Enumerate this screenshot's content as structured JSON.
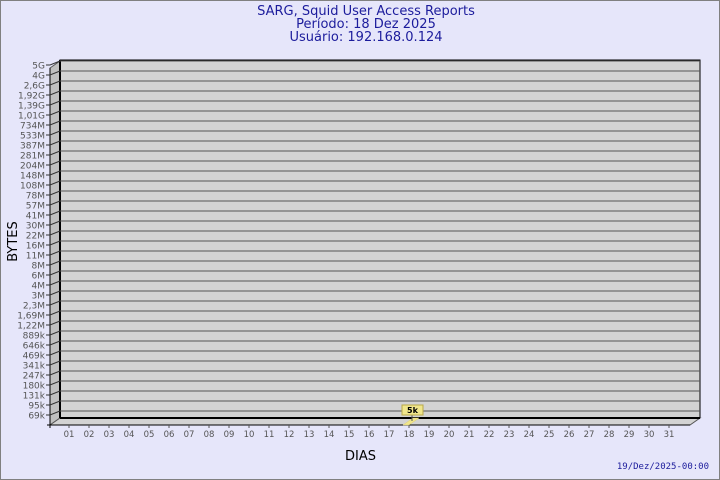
{
  "header": {
    "title": "SARG, Squid User Access Reports",
    "period": "Período: 18 Dez 2025",
    "user": "Usuário: 192.168.0.124"
  },
  "footer": {
    "timestamp": "19/Dez/2025-00:00"
  },
  "colors": {
    "background": "#e6e6fa",
    "plot": "#d3d3d3",
    "wall": "#c0c0c0",
    "bar": "#f0e68c",
    "title": "#1c1c9c"
  },
  "chart_data": {
    "type": "bar",
    "xlabel": "DIAS",
    "ylabel": "BYTES",
    "y_scale": "log",
    "grid": true,
    "y_tick_labels": [
      "5G",
      "4G",
      "2,6G",
      "1,92G",
      "1,39G",
      "1,01G",
      "734M",
      "533M",
      "387M",
      "281M",
      "204M",
      "148M",
      "108M",
      "78M",
      "57M",
      "41M",
      "30M",
      "22M",
      "16M",
      "11M",
      "8M",
      "6M",
      "4M",
      "3M",
      "2,3M",
      "1,69M",
      "1,22M",
      "889k",
      "646k",
      "469k",
      "341k",
      "247k",
      "180k",
      "131k",
      "95k",
      "69k"
    ],
    "categories": [
      "01",
      "02",
      "03",
      "04",
      "05",
      "06",
      "07",
      "08",
      "09",
      "10",
      "11",
      "12",
      "13",
      "14",
      "15",
      "16",
      "17",
      "18",
      "19",
      "20",
      "21",
      "22",
      "23",
      "24",
      "25",
      "26",
      "27",
      "28",
      "29",
      "30",
      "31"
    ],
    "values": [
      null,
      null,
      null,
      null,
      null,
      null,
      null,
      null,
      null,
      null,
      null,
      null,
      null,
      null,
      null,
      null,
      null,
      5000,
      null,
      null,
      null,
      null,
      null,
      null,
      null,
      null,
      null,
      null,
      null,
      null,
      null
    ],
    "data_labels": {
      "18": "5k"
    }
  }
}
